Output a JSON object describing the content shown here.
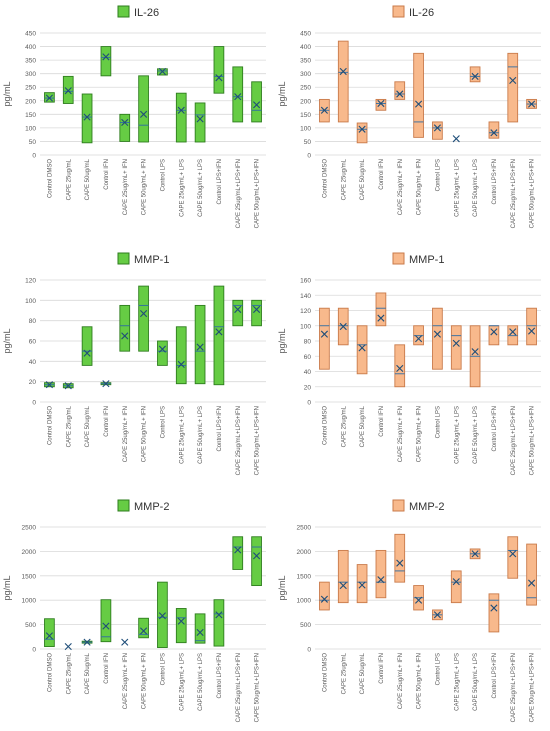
{
  "categories": [
    "Control DMSO",
    "CAPE 25ug/mL",
    "CAPE 50ug/mL",
    "Control IFN",
    "CAPE 25ug/mL+ IFN",
    "CAPE 50ug/mL+ IFN",
    "Control LPS",
    "CAPE 25ug/mL+ LPS",
    "CAPE 50ug/mL+ LPS",
    "Control LPS+IFN",
    "CAPE 25ug/mL+LPS+IFN",
    "CAPE 50ug/mL+LPS+IFN"
  ],
  "colors": {
    "green_fill": "#66cc44",
    "green_stroke": "#2e7d1e",
    "orange_fill": "#f8b98c",
    "orange_stroke": "#c97a4a",
    "median_line": "#2e6da4",
    "mean_marker": "#1f4e79",
    "grid": "#d9d9d9",
    "axis_text": "#595959"
  },
  "chart_data": [
    {
      "type": "box",
      "title": "IL-26",
      "ylabel": "pg/mL",
      "ylim": [
        0,
        450
      ],
      "yticks": [
        0,
        50,
        100,
        150,
        200,
        250,
        300,
        350,
        400,
        450
      ],
      "legend": "IL-26",
      "color": "green",
      "grid": true,
      "series": [
        {
          "min": 195,
          "q1": 195,
          "median": 210,
          "q3": 230,
          "max": 230,
          "mean": 210
        },
        {
          "min": 190,
          "q1": 190,
          "median": 235,
          "q3": 290,
          "max": 290,
          "mean": 237
        },
        {
          "min": 45,
          "q1": 45,
          "median": 140,
          "q3": 225,
          "max": 225,
          "mean": 140
        },
        {
          "min": 292,
          "q1": 292,
          "median": 360,
          "q3": 400,
          "max": 400,
          "mean": 362
        },
        {
          "min": 50,
          "q1": 50,
          "median": 120,
          "q3": 150,
          "max": 150,
          "mean": 120
        },
        {
          "min": 48,
          "q1": 48,
          "median": 110,
          "q3": 292,
          "max": 292,
          "mean": 150
        },
        {
          "min": 295,
          "q1": 295,
          "median": 310,
          "q3": 318,
          "max": 318,
          "mean": 308
        },
        {
          "min": 48,
          "q1": 48,
          "median": 165,
          "q3": 228,
          "max": 228,
          "mean": 165
        },
        {
          "min": 48,
          "q1": 48,
          "median": 148,
          "q3": 192,
          "max": 192,
          "mean": 133
        },
        {
          "min": 228,
          "q1": 228,
          "median": 290,
          "q3": 400,
          "max": 400,
          "mean": 285
        },
        {
          "min": 122,
          "q1": 122,
          "median": 215,
          "q3": 325,
          "max": 325,
          "mean": 215
        },
        {
          "min": 122,
          "q1": 122,
          "median": 165,
          "q3": 270,
          "max": 270,
          "mean": 185
        }
      ]
    },
    {
      "type": "box",
      "title": "IL-26",
      "ylabel": "pg/mL",
      "ylim": [
        0,
        450
      ],
      "yticks": [
        0,
        50,
        100,
        150,
        200,
        250,
        300,
        350,
        400,
        450
      ],
      "legend": "IL-26",
      "color": "orange",
      "grid": true,
      "series": [
        {
          "min": 122,
          "q1": 122,
          "median": 165,
          "q3": 205,
          "max": 205,
          "mean": 165
        },
        {
          "min": 122,
          "q1": 122,
          "median": 305,
          "q3": 420,
          "max": 420,
          "mean": 308
        },
        {
          "min": 45,
          "q1": 45,
          "median": 95,
          "q3": 118,
          "max": 118,
          "mean": 95
        },
        {
          "min": 165,
          "q1": 165,
          "median": 190,
          "q3": 205,
          "max": 205,
          "mean": 190
        },
        {
          "min": 205,
          "q1": 205,
          "median": 225,
          "q3": 270,
          "max": 270,
          "mean": 225
        },
        {
          "min": 65,
          "q1": 65,
          "median": 122,
          "q3": 375,
          "max": 375,
          "mean": 188
        },
        {
          "min": 58,
          "q1": 58,
          "median": 100,
          "q3": 122,
          "max": 122,
          "mean": 100
        },
        {
          "min": 58,
          "q1": 58,
          "median": 60,
          "q3": 62,
          "max": 62,
          "mean": 60
        },
        {
          "min": 270,
          "q1": 270,
          "median": 290,
          "q3": 325,
          "max": 325,
          "mean": 290
        },
        {
          "min": 62,
          "q1": 62,
          "median": 82,
          "q3": 122,
          "max": 122,
          "mean": 82
        },
        {
          "min": 122,
          "q1": 122,
          "median": 325,
          "q3": 375,
          "max": 375,
          "mean": 275
        },
        {
          "min": 172,
          "q1": 172,
          "median": 188,
          "q3": 205,
          "max": 205,
          "mean": 188
        }
      ]
    },
    {
      "type": "box",
      "title": "MMP-1",
      "ylabel": "pg/mL",
      "ylim": [
        0,
        120
      ],
      "yticks": [
        0,
        20,
        40,
        60,
        80,
        100,
        120
      ],
      "legend": "MMP-1",
      "color": "green",
      "grid": true,
      "series": [
        {
          "min": 15,
          "q1": 15,
          "median": 17,
          "q3": 19,
          "max": 19,
          "mean": 17
        },
        {
          "min": 14,
          "q1": 14,
          "median": 16,
          "q3": 18,
          "max": 18,
          "mean": 16
        },
        {
          "min": 36,
          "q1": 36,
          "median": 50,
          "q3": 74,
          "max": 74,
          "mean": 48
        },
        {
          "min": 17,
          "q1": 17,
          "median": 18,
          "q3": 19,
          "max": 19,
          "mean": 18
        },
        {
          "min": 50,
          "q1": 50,
          "median": 75,
          "q3": 95,
          "max": 95,
          "mean": 65
        },
        {
          "min": 50,
          "q1": 50,
          "median": 95,
          "q3": 114,
          "max": 114,
          "mean": 87
        },
        {
          "min": 36,
          "q1": 36,
          "median": 50,
          "q3": 60,
          "max": 60,
          "mean": 52
        },
        {
          "min": 18,
          "q1": 18,
          "median": 36,
          "q3": 74,
          "max": 74,
          "mean": 37
        },
        {
          "min": 18,
          "q1": 18,
          "median": 50,
          "q3": 95,
          "max": 95,
          "mean": 54
        },
        {
          "min": 17,
          "q1": 17,
          "median": 74,
          "q3": 114,
          "max": 114,
          "mean": 69
        },
        {
          "min": 75,
          "q1": 75,
          "median": 95,
          "q3": 100,
          "max": 100,
          "mean": 91
        },
        {
          "min": 75,
          "q1": 75,
          "median": 95,
          "q3": 100,
          "max": 100,
          "mean": 91
        }
      ]
    },
    {
      "type": "box",
      "title": "MMP-1",
      "ylabel": "pg/mL",
      "ylim": [
        0,
        160
      ],
      "yticks": [
        0,
        20,
        40,
        60,
        80,
        100,
        120,
        140,
        160
      ],
      "legend": "MMP-1",
      "color": "orange",
      "grid": true,
      "series": [
        {
          "min": 43,
          "q1": 43,
          "median": 100,
          "q3": 123,
          "max": 123,
          "mean": 89
        },
        {
          "min": 75,
          "q1": 75,
          "median": 100,
          "q3": 123,
          "max": 123,
          "mean": 99
        },
        {
          "min": 37,
          "q1": 37,
          "median": 75,
          "q3": 100,
          "max": 100,
          "mean": 71
        },
        {
          "min": 100,
          "q1": 100,
          "median": 123,
          "q3": 143,
          "max": 143,
          "mean": 110
        },
        {
          "min": 20,
          "q1": 20,
          "median": 37,
          "q3": 75,
          "max": 75,
          "mean": 44
        },
        {
          "min": 75,
          "q1": 75,
          "median": 87,
          "q3": 100,
          "max": 100,
          "mean": 83
        },
        {
          "min": 43,
          "q1": 43,
          "median": 100,
          "q3": 123,
          "max": 123,
          "mean": 89
        },
        {
          "min": 43,
          "q1": 43,
          "median": 87,
          "q3": 100,
          "max": 100,
          "mean": 77
        },
        {
          "min": 20,
          "q1": 20,
          "median": 60,
          "q3": 100,
          "max": 100,
          "mean": 66
        },
        {
          "min": 75,
          "q1": 75,
          "median": 100,
          "q3": 100,
          "max": 100,
          "mean": 92
        },
        {
          "min": 75,
          "q1": 75,
          "median": 87,
          "q3": 100,
          "max": 100,
          "mean": 92
        },
        {
          "min": 75,
          "q1": 75,
          "median": 100,
          "q3": 123,
          "max": 123,
          "mean": 93
        }
      ]
    },
    {
      "type": "box",
      "title": "MMP-2",
      "ylabel": "pg/mL",
      "ylim": [
        0,
        2500
      ],
      "yticks": [
        0,
        500,
        1000,
        1500,
        2000,
        2500
      ],
      "legend": "MMP-2",
      "color": "green",
      "grid": true,
      "series": [
        {
          "min": 50,
          "q1": 50,
          "median": 200,
          "q3": 620,
          "max": 620,
          "mean": 270
        },
        {
          "min": 40,
          "q1": 40,
          "median": 50,
          "q3": 60,
          "max": 60,
          "mean": 50
        },
        {
          "min": 120,
          "q1": 120,
          "median": 140,
          "q3": 160,
          "max": 160,
          "mean": 140
        },
        {
          "min": 150,
          "q1": 150,
          "median": 250,
          "q3": 1010,
          "max": 1010,
          "mean": 470
        },
        {
          "min": 130,
          "q1": 130,
          "median": 140,
          "q3": 160,
          "max": 160,
          "mean": 140
        },
        {
          "min": 230,
          "q1": 230,
          "median": 300,
          "q3": 630,
          "max": 630,
          "mean": 370
        },
        {
          "min": 30,
          "q1": 30,
          "median": 650,
          "q3": 1370,
          "max": 1370,
          "mean": 680
        },
        {
          "min": 130,
          "q1": 130,
          "median": 640,
          "q3": 830,
          "max": 830,
          "mean": 570
        },
        {
          "min": 120,
          "q1": 120,
          "median": 170,
          "q3": 720,
          "max": 720,
          "mean": 340
        },
        {
          "min": 60,
          "q1": 60,
          "median": 720,
          "q3": 1010,
          "max": 1010,
          "mean": 700
        },
        {
          "min": 1630,
          "q1": 1630,
          "median": 2090,
          "q3": 2300,
          "max": 2300,
          "mean": 2030
        },
        {
          "min": 1300,
          "q1": 1300,
          "median": 2090,
          "q3": 2300,
          "max": 2300,
          "mean": 1910
        }
      ]
    },
    {
      "type": "box",
      "title": "MMP-2",
      "ylabel": "pg/mL",
      "ylim": [
        0,
        2500
      ],
      "yticks": [
        0,
        500,
        1000,
        1500,
        2000,
        2500
      ],
      "legend": "MMP-2",
      "color": "orange",
      "grid": true,
      "series": [
        {
          "min": 800,
          "q1": 800,
          "median": 1000,
          "q3": 1370,
          "max": 1370,
          "mean": 1020
        },
        {
          "min": 950,
          "q1": 950,
          "median": 1370,
          "q3": 2020,
          "max": 2020,
          "mean": 1300
        },
        {
          "min": 950,
          "q1": 950,
          "median": 1370,
          "q3": 1730,
          "max": 1730,
          "mean": 1310
        },
        {
          "min": 1050,
          "q1": 1050,
          "median": 1370,
          "q3": 2020,
          "max": 2020,
          "mean": 1420
        },
        {
          "min": 1370,
          "q1": 1370,
          "median": 1600,
          "q3": 2350,
          "max": 2350,
          "mean": 1760
        },
        {
          "min": 800,
          "q1": 800,
          "median": 1050,
          "q3": 1300,
          "max": 1300,
          "mean": 1000
        },
        {
          "min": 600,
          "q1": 600,
          "median": 700,
          "q3": 800,
          "max": 800,
          "mean": 700
        },
        {
          "min": 950,
          "q1": 950,
          "median": 1370,
          "q3": 1600,
          "max": 1600,
          "mean": 1380
        },
        {
          "min": 1850,
          "q1": 1850,
          "median": 1950,
          "q3": 2050,
          "max": 2050,
          "mean": 1950
        },
        {
          "min": 350,
          "q1": 350,
          "median": 1000,
          "q3": 1130,
          "max": 1130,
          "mean": 840
        },
        {
          "min": 1450,
          "q1": 1450,
          "median": 2020,
          "q3": 2300,
          "max": 2300,
          "mean": 1950
        },
        {
          "min": 900,
          "q1": 900,
          "median": 1050,
          "q3": 2150,
          "max": 2150,
          "mean": 1350
        }
      ]
    }
  ]
}
